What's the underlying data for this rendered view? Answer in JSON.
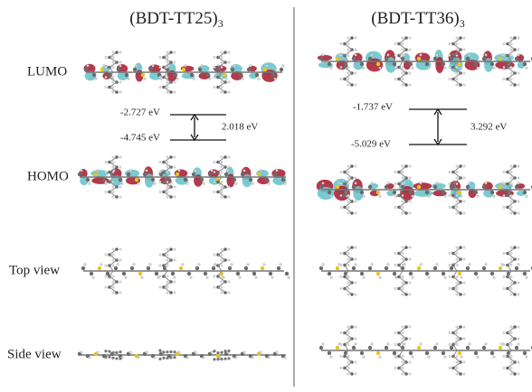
{
  "panels": [
    {
      "title": {
        "main": "(BDT-TT25)",
        "sub": "3"
      },
      "lumo": "-2.727 eV",
      "homo": "-4.745 eV",
      "gap": "2.018 eV"
    },
    {
      "title": {
        "main": "(BDT-TT36)",
        "sub": "3"
      },
      "lumo": "-1.737 eV",
      "homo": "-5.029 eV",
      "gap": "3.292 eV"
    }
  ],
  "row_labels": [
    "LUMO",
    "HOMO",
    "Top view",
    "Side view"
  ]
}
